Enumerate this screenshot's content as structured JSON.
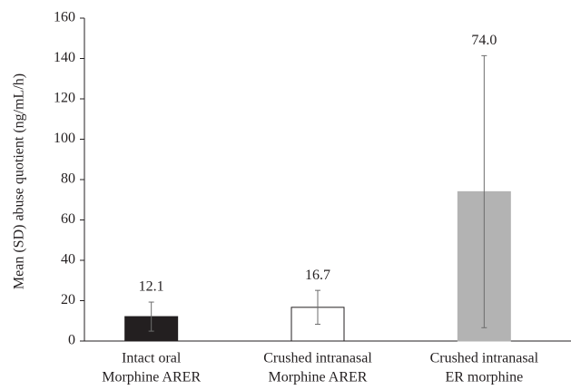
{
  "chart_data": {
    "type": "bar",
    "y_label": "Mean (SD) abuse quotient (ng/mL/h)",
    "categories": [
      [
        "Intact oral",
        "Morphine ARER"
      ],
      [
        "Crushed intranasal",
        "Morphine ARER"
      ],
      [
        "Crushed intranasal",
        "ER morphine"
      ]
    ],
    "values": [
      12.1,
      16.7,
      74.0
    ],
    "value_labels": [
      "12.1",
      "16.7",
      "74.0"
    ],
    "errors": [
      7.2,
      8.4,
      67.4
    ],
    "colors": [
      "#231f20",
      "#ffffff",
      "#b3b3b3"
    ],
    "edgecolors": [
      "#231f20",
      "#231f20",
      "#b3b3b3"
    ],
    "errorbar_color": "#6d6d6d",
    "ylim": [
      0,
      160
    ],
    "yticks": [
      0,
      20,
      40,
      60,
      80,
      100,
      120,
      140,
      160
    ],
    "grid": false
  }
}
